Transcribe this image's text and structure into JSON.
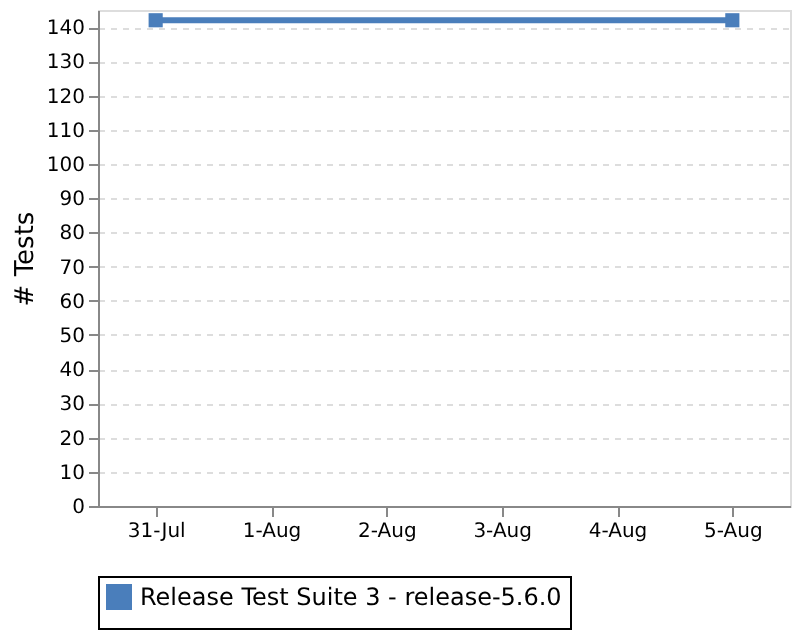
{
  "chart_data": {
    "type": "line",
    "ylabel": "# Tests",
    "categories": [
      "31-Jul",
      "1-Aug",
      "2-Aug",
      "3-Aug",
      "4-Aug",
      "5-Aug"
    ],
    "series": [
      {
        "name": "Release Test Suite 3 - release-5.6.0",
        "color": "#4a7ebb",
        "values": [
          142,
          null,
          null,
          null,
          null,
          142
        ]
      }
    ],
    "ylim": [
      0,
      145
    ],
    "yticks": [
      0,
      10,
      20,
      30,
      40,
      50,
      60,
      70,
      80,
      90,
      100,
      110,
      120,
      130,
      140
    ],
    "grid": "y",
    "legend": "bottom",
    "marker": "square",
    "line_style": "solid"
  }
}
